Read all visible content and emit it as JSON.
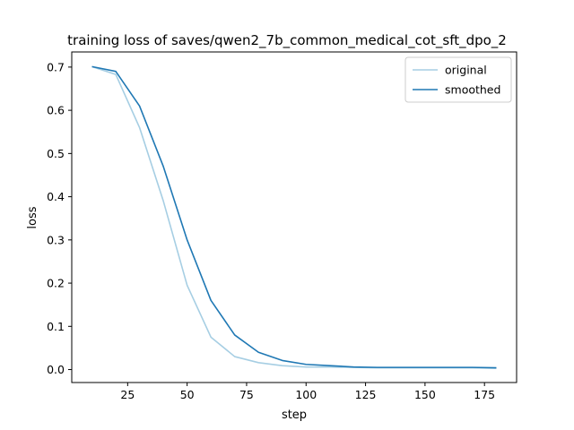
{
  "chart_data": {
    "type": "line",
    "title": "training loss of saves/qwen2_7b_common_medical_cot_sft_dpo_2",
    "xlabel": "step",
    "ylabel": "loss",
    "xlim": [
      1.5,
      188.5
    ],
    "ylim": [
      -0.03,
      0.735
    ],
    "xticks": [
      25,
      50,
      75,
      100,
      125,
      150,
      175
    ],
    "yticks": [
      0.0,
      0.1,
      0.2,
      0.3,
      0.4,
      0.5,
      0.6,
      0.7
    ],
    "xtick_labels": [
      "25",
      "50",
      "75",
      "100",
      "125",
      "150",
      "175"
    ],
    "ytick_labels": [
      "0.0",
      "0.1",
      "0.2",
      "0.3",
      "0.4",
      "0.5",
      "0.6",
      "0.7"
    ],
    "grid": false,
    "legend_position": "top-right",
    "x": [
      10,
      20,
      30,
      40,
      50,
      60,
      70,
      80,
      90,
      100,
      110,
      120,
      130,
      140,
      150,
      160,
      170,
      180
    ],
    "series": [
      {
        "name": "original",
        "color": "#a6cee3",
        "values": [
          0.701,
          0.683,
          0.56,
          0.39,
          0.195,
          0.075,
          0.03,
          0.016,
          0.009,
          0.006,
          0.006,
          0.005,
          0.004,
          0.004,
          0.004,
          0.004,
          0.004,
          0.003
        ]
      },
      {
        "name": "smoothed",
        "color": "#1f78b4",
        "values": [
          0.701,
          0.69,
          0.61,
          0.47,
          0.3,
          0.16,
          0.08,
          0.04,
          0.021,
          0.012,
          0.009,
          0.006,
          0.005,
          0.005,
          0.005,
          0.005,
          0.005,
          0.004
        ]
      }
    ]
  }
}
